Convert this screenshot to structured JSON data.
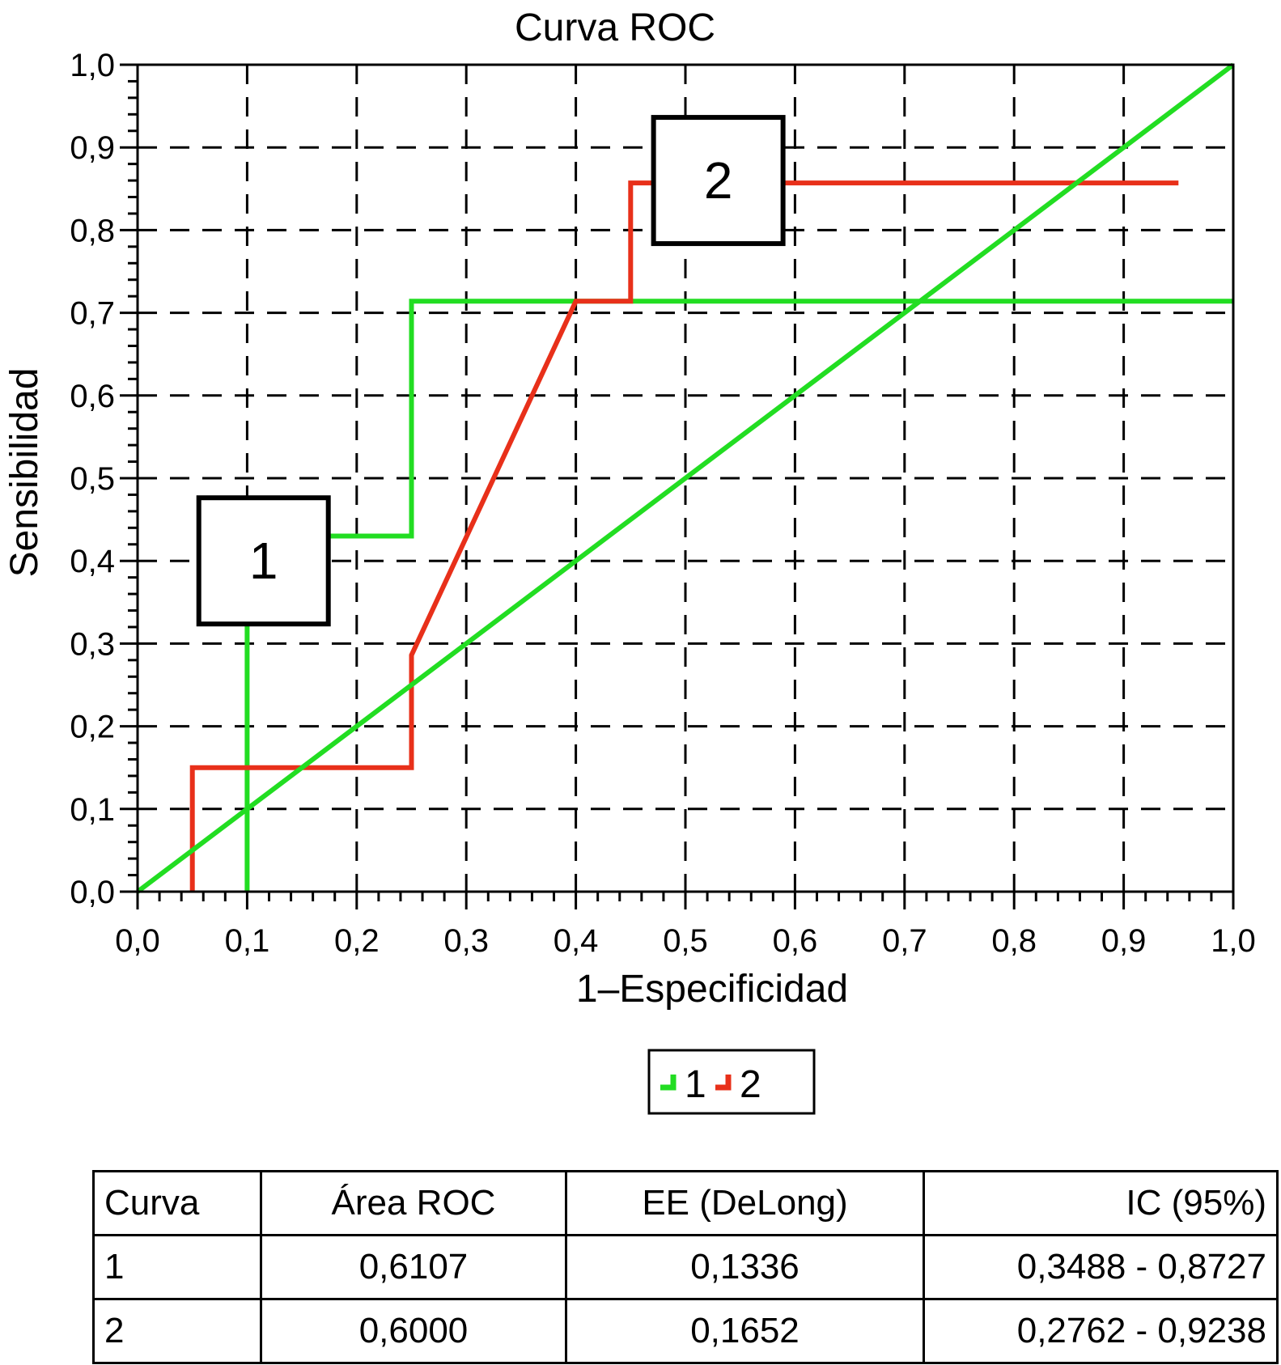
{
  "chart_data": {
    "type": "line",
    "title": "Curva ROC",
    "xlabel": "1–Especificidad",
    "ylabel": "Sensibilidad",
    "xlim": [
      0,
      1
    ],
    "ylim": [
      0,
      1
    ],
    "x_ticks": [
      "0,0",
      "0,1",
      "0,2",
      "0,3",
      "0,4",
      "0,5",
      "0,6",
      "0,7",
      "0,8",
      "0,9",
      "1,0"
    ],
    "y_ticks": [
      "0,0",
      "0,1",
      "0,2",
      "0,3",
      "0,4",
      "0,5",
      "0,6",
      "0,7",
      "0,8",
      "0,9",
      "1,0"
    ],
    "grid": true,
    "legend_position": "bottom-center",
    "series": [
      {
        "name": "1",
        "color": "#22dd22",
        "points": [
          [
            0.1,
            0
          ],
          [
            0.1,
            0.43
          ],
          [
            0.25,
            0.43
          ],
          [
            0.25,
            0.714
          ],
          [
            1.0,
            0.714
          ]
        ]
      },
      {
        "name": "2",
        "color": "#e8301a",
        "points": [
          [
            0.05,
            0
          ],
          [
            0.05,
            0.15
          ],
          [
            0.25,
            0.15
          ],
          [
            0.25,
            0.286
          ],
          [
            0.4,
            0.714
          ],
          [
            0.45,
            0.714
          ],
          [
            0.45,
            0.857
          ],
          [
            0.95,
            0.857
          ]
        ]
      }
    ],
    "reference_line": {
      "color": "#22dd22",
      "points": [
        [
          0,
          0
        ],
        [
          1,
          1
        ]
      ]
    },
    "annotations": [
      {
        "text": "1",
        "x": 0.115,
        "y": 0.4
      },
      {
        "text": "2",
        "x": 0.53,
        "y": 0.86
      }
    ]
  },
  "table": {
    "headers": [
      "Curva",
      "Área ROC",
      "EE (DeLong)",
      "IC (95%)"
    ],
    "rows": [
      [
        "1",
        "0,6107",
        "0,1336",
        "0,3488 - 0,8727"
      ],
      [
        "2",
        "0,6000",
        "0,1652",
        "0,2762 - 0,9238"
      ]
    ]
  }
}
